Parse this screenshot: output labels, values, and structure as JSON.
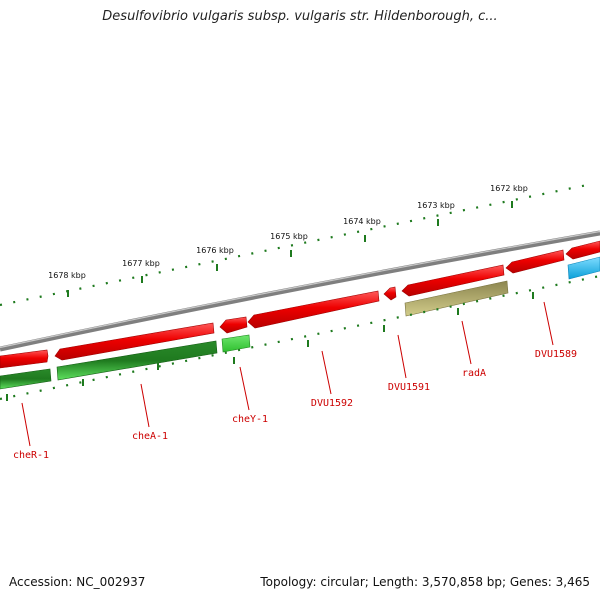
{
  "title": "Desulfovibrio vulgaris subsp. vulgaris str. Hildenborough, c...",
  "ruler": {
    "labels": [
      "1678 kbp",
      "1677 kbp",
      "1676 kbp",
      "1675 kbp",
      "1674 kbp",
      "1673 kbp",
      "1672 kbp"
    ],
    "color": "#1e7a1e"
  },
  "genes": {
    "labels": [
      "cheR-1",
      "cheA-1",
      "cheY-1",
      "DVU1592",
      "DVU1591",
      "radA",
      "DVU1589"
    ],
    "label_color": "#cc0000"
  },
  "colors": {
    "backbone": "#7f7f7f",
    "forward_gene": "#ee0000",
    "reverse_gene": "#2fbf2f",
    "reverse_gene_dark": "#1f7a1f",
    "rna_gene": "#b3ad6a",
    "other_gene": "#19b6ee"
  },
  "footer": {
    "accession": "Accession: NC_002937",
    "topology": "Topology: circular; Length: 3,570,858 bp; Genes: 3,465"
  }
}
